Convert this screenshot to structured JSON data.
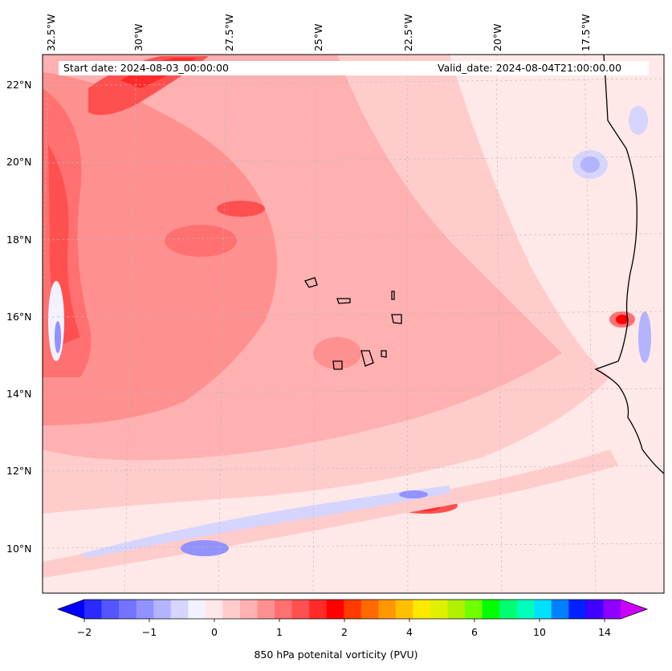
{
  "map": {
    "start_date": "Start date: 2024-08-03_00:00:00",
    "valid_date": "Valid_date: 2024-08-04T21:00:00.00",
    "lon_labels": [
      "32.5°W",
      "30°W",
      "27.5°W",
      "25°W",
      "22.5°W",
      "20°W",
      "17.5°W"
    ],
    "lat_labels": [
      "22°N",
      "20°N",
      "18°N",
      "16°N",
      "14°N",
      "12°N",
      "10°N"
    ]
  },
  "colorbar": {
    "title": "850 hPa potenital vorticity (PVU)",
    "tick_labels": [
      "−2",
      "−1",
      "0",
      "1",
      "2",
      "4",
      "6",
      "10",
      "14"
    ],
    "colors": [
      "#0000ff",
      "#2a2aff",
      "#5555ff",
      "#7373ff",
      "#9191ff",
      "#b3b3ff",
      "#d5d5ff",
      "#f1f1ff",
      "#ffe8e8",
      "#ffcccc",
      "#ffb0b0",
      "#ff9090",
      "#ff7070",
      "#ff5050",
      "#ff2a2a",
      "#ff0000",
      "#ff3a00",
      "#ff6a00",
      "#ff9800",
      "#ffc000",
      "#ffe800",
      "#e0f000",
      "#b0f000",
      "#70ff00",
      "#00ff00",
      "#00ff70",
      "#00ffb8",
      "#00e0ff",
      "#0080ff",
      "#0020ff",
      "#4000ff",
      "#9000ff",
      "#cc00ff"
    ]
  }
}
